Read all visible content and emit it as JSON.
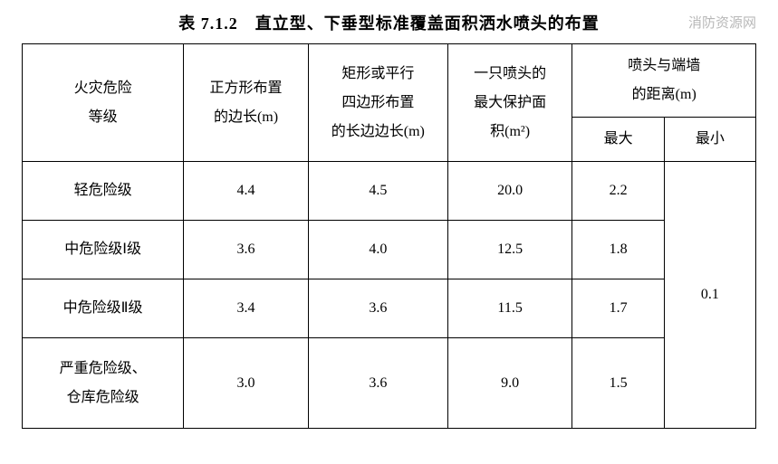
{
  "title": "表 7.1.2　直立型、下垂型标准覆盖面积洒水喷头的布置",
  "watermark": "消防资源网",
  "table": {
    "columns": {
      "hazard": "火灾危险\n等级",
      "square": "正方形布置\n的边长(m)",
      "rect": "矩形或平行\n四边形布置\n的长边边长(m)",
      "area": "一只喷头的\n最大保护面\n积(m²)",
      "wall_dist": "喷头与端墙\n的距离(m)",
      "max": "最大",
      "min": "最小"
    },
    "rows": [
      {
        "hazard": "轻危险级",
        "square": "4.4",
        "rect": "4.5",
        "area": "20.0",
        "max": "2.2"
      },
      {
        "hazard": "中危险级Ⅰ级",
        "square": "3.6",
        "rect": "4.0",
        "area": "12.5",
        "max": "1.8"
      },
      {
        "hazard": "中危险级Ⅱ级",
        "square": "3.4",
        "rect": "3.6",
        "area": "11.5",
        "max": "1.7"
      },
      {
        "hazard": "严重危险级、\n仓库危险级",
        "square": "3.0",
        "rect": "3.6",
        "area": "9.0",
        "max": "1.5"
      }
    ],
    "min_shared": "0.1"
  },
  "styling": {
    "font_family": "SimSun",
    "title_fontsize": 18,
    "cell_fontsize": 16,
    "border_color": "#000000",
    "border_width": 1.5,
    "background_color": "#ffffff",
    "text_color": "#000000",
    "watermark_color": "#b8b8b8"
  }
}
